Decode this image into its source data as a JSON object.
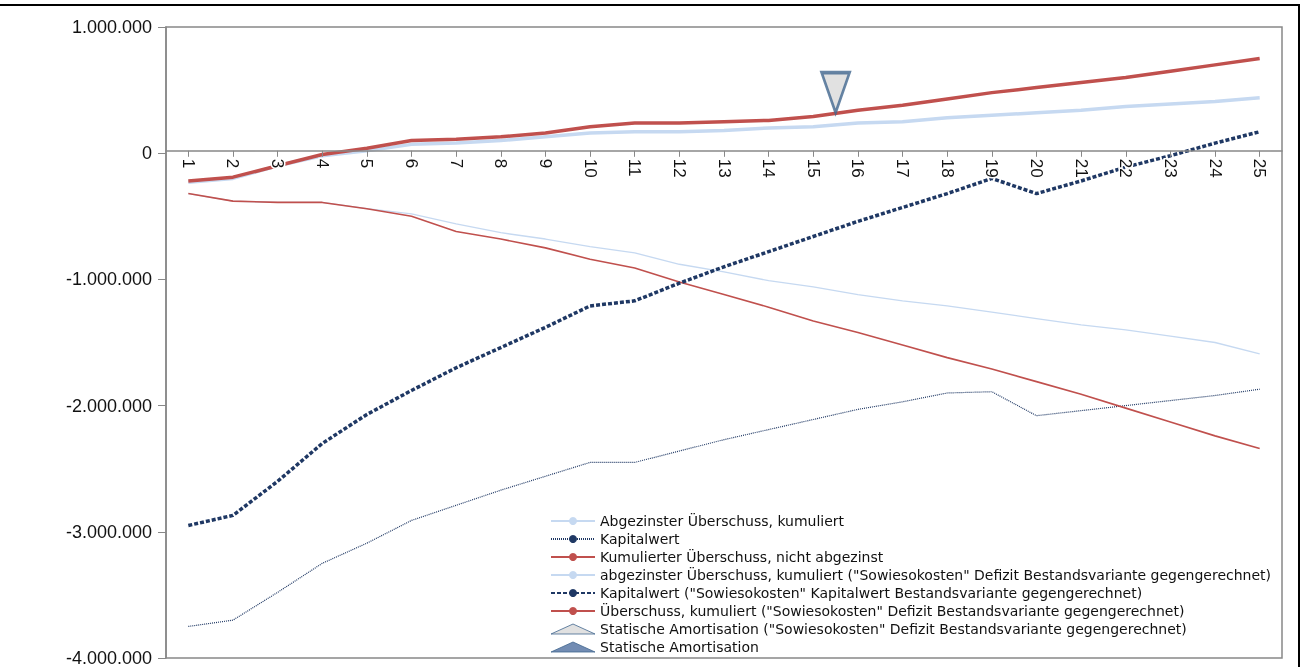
{
  "chart_data": {
    "type": "line",
    "x": [
      1,
      2,
      3,
      4,
      5,
      6,
      7,
      8,
      9,
      10,
      11,
      12,
      13,
      14,
      15,
      16,
      17,
      18,
      19,
      20,
      21,
      22,
      23,
      24,
      25
    ],
    "xlim": [
      0.5,
      25.5
    ],
    "xticks": [
      1,
      2,
      3,
      4,
      5,
      6,
      7,
      8,
      9,
      10,
      11,
      12,
      13,
      14,
      15,
      16,
      17,
      18,
      19,
      20,
      21,
      22,
      23,
      24,
      25
    ],
    "ylim": [
      -4000000,
      1000000
    ],
    "yticks": [
      {
        "value": -4000000,
        "label": "-4.000.000"
      },
      {
        "value": -3000000,
        "label": "-3.000.000"
      },
      {
        "value": -2000000,
        "label": "-2.000.000"
      },
      {
        "value": -1000000,
        "label": "-1.000.000"
      },
      0,
      {
        "value": 1000000,
        "label": "1.000.000"
      }
    ],
    "grid": false,
    "legend": "bottom",
    "series": [
      {
        "name": "Abgezinster Überschuss, kumuliert",
        "color": "#c6d9f1",
        "line_style": "solid",
        "values": [
          -320000,
          -380000,
          -390000,
          -390000,
          -440000,
          -480000,
          -560000,
          -630000,
          -680000,
          -740000,
          -790000,
          -880000,
          -940000,
          -1010000,
          -1060000,
          -1120000,
          -1170000,
          -1210000,
          -1260000,
          -1310000,
          -1360000,
          -1400000,
          -1450000,
          -1500000,
          -1590000
        ]
      },
      {
        "name": "Kapitalwert",
        "color": "#1f3864",
        "line_style": "dotted",
        "values": [
          -3750000,
          -3700000,
          -3480000,
          -3250000,
          -3090000,
          -2910000,
          -2790000,
          -2670000,
          -2560000,
          -2450000,
          -2450000,
          -2360000,
          -2270000,
          -2190000,
          -2110000,
          -2030000,
          -1970000,
          -1900000,
          -1890000,
          -2080000,
          -2040000,
          -2000000,
          -1960000,
          -1920000,
          -1870000
        ]
      },
      {
        "name": "Kumulierter Überschuss, nicht abgezinst",
        "color": "#c0504d",
        "line_style": "solid",
        "values": [
          -320000,
          -380000,
          -390000,
          -390000,
          -440000,
          -500000,
          -620000,
          -680000,
          -750000,
          -840000,
          -910000,
          -1020000,
          -1120000,
          -1220000,
          -1330000,
          -1420000,
          -1520000,
          -1620000,
          -1710000,
          -1810000,
          -1910000,
          -2020000,
          -2130000,
          -2240000,
          -2340000
        ]
      },
      {
        "name": "abgezinster Überschuss, kumuliert (\"Sowiesokosten\" Defizit Bestandsvariante gegengerechnet)",
        "color": "#c6d9f1",
        "line_style": "solid",
        "values": [
          -230000,
          -200000,
          -100000,
          -20000,
          20000,
          70000,
          80000,
          100000,
          130000,
          160000,
          170000,
          170000,
          180000,
          200000,
          210000,
          240000,
          250000,
          280000,
          300000,
          320000,
          340000,
          370000,
          390000,
          410000,
          440000
        ]
      },
      {
        "name": "Kapitalwert (\"Sowiesokosten\" Kapitalwert Bestandsvariante gegengerechnet)",
        "color": "#1f3864",
        "line_style": "dashed",
        "values": [
          -2950000,
          -2870000,
          -2600000,
          -2300000,
          -2070000,
          -1880000,
          -1700000,
          -1540000,
          -1380000,
          -1210000,
          -1170000,
          -1030000,
          -900000,
          -780000,
          -660000,
          -540000,
          -430000,
          -320000,
          -200000,
          -320000,
          -220000,
          -110000,
          -20000,
          80000,
          170000
        ]
      },
      {
        "name": "Überschuss, kumuliert (\"Sowiesokosten\" Defizit Bestandsvariante gegengerechnet)",
        "color": "#c0504d",
        "line_style": "solid",
        "values": [
          -220000,
          -190000,
          -100000,
          -10000,
          40000,
          100000,
          110000,
          130000,
          160000,
          210000,
          240000,
          240000,
          250000,
          260000,
          290000,
          340000,
          380000,
          430000,
          480000,
          520000,
          560000,
          600000,
          650000,
          700000,
          750000
        ]
      },
      {
        "name": "Statische Amortisation (\"Sowiesokosten\" Defizit Bestandsvariante gegengerechnet)",
        "type": "scatter",
        "marker": "triangle",
        "color": "#d9d9d9",
        "x": [
          15.5
        ],
        "values": [
          480000
        ]
      },
      {
        "name": "Statische Amortisation",
        "type": "scatter",
        "marker": "triangle",
        "color": "#4f6fa0",
        "values": [
          null,
          null,
          null,
          null,
          null,
          null,
          null,
          null,
          null,
          null,
          null,
          null,
          null,
          null,
          null,
          null,
          null,
          null,
          null,
          null,
          null,
          null,
          null,
          null,
          null
        ]
      }
    ]
  }
}
